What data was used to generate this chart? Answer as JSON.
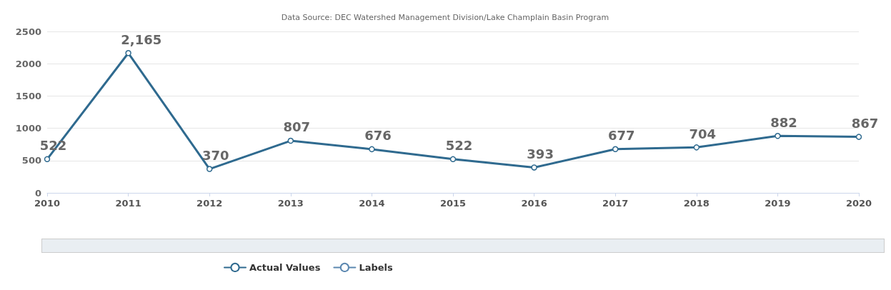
{
  "chart_data": {
    "type": "line",
    "title": "Data Source: DEC Watershed Management Division/Lake Champlain Basin Program",
    "categories": [
      "2010",
      "2011",
      "2012",
      "2013",
      "2014",
      "2015",
      "2016",
      "2017",
      "2018",
      "2019",
      "2020"
    ],
    "series": [
      {
        "name": "Actual Values",
        "color": "#2f6a8f",
        "values": [
          522,
          2165,
          370,
          807,
          676,
          522,
          393,
          677,
          704,
          882,
          867
        ],
        "value_labels": [
          "522",
          "2,165",
          "370",
          "807",
          "676",
          "522",
          "393",
          "677",
          "704",
          "882",
          "867"
        ]
      },
      {
        "name": "Labels",
        "color": "#5b87b0",
        "values": [
          null,
          null,
          null,
          null,
          null,
          null,
          null,
          null,
          null,
          null,
          null
        ]
      }
    ],
    "ylim": [
      0,
      2500
    ],
    "yticks": [
      0,
      500,
      1000,
      1500,
      2000,
      2500
    ],
    "grid": "y",
    "legend": "bottom",
    "marker": "circle",
    "line_style": "solid"
  }
}
